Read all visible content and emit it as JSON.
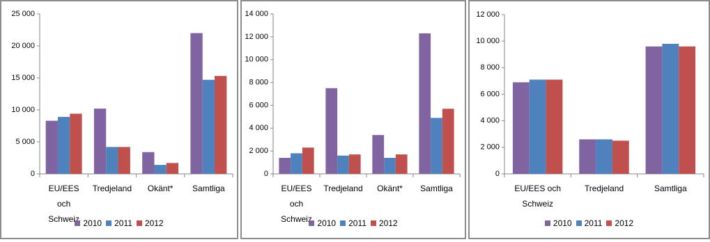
{
  "chart_data": [
    {
      "type": "bar",
      "categories": [
        "EU/EES och Schweiz",
        "Tredjeland",
        "Okänt*",
        "Samtliga"
      ],
      "series": [
        {
          "name": "2010",
          "color": "#8064a2",
          "values": [
            8300,
            10200,
            3400,
            22000
          ]
        },
        {
          "name": "2011",
          "color": "#4f81bd",
          "values": [
            8900,
            4200,
            1400,
            14700
          ]
        },
        {
          "name": "2012",
          "color": "#c0504d",
          "values": [
            9400,
            4200,
            1700,
            15300
          ]
        }
      ],
      "ylim": [
        0,
        25000
      ],
      "yticks": [
        0,
        {
          "value": 5000,
          "label": "5 000"
        },
        {
          "value": 10000,
          "label": "10 000"
        },
        {
          "value": 15000,
          "label": "15 000"
        },
        {
          "value": 20000,
          "label": "20 000"
        },
        {
          "value": 25000,
          "label": "25 000"
        }
      ],
      "grid": false,
      "legend": "bottom"
    },
    {
      "type": "bar",
      "categories": [
        "EU/EES och Schweiz",
        "Tredjeland",
        "Okänt*",
        "Samtliga"
      ],
      "series": [
        {
          "name": "2010",
          "color": "#8064a2",
          "values": [
            1400,
            7500,
            3400,
            12300
          ]
        },
        {
          "name": "2011",
          "color": "#4f81bd",
          "values": [
            1800,
            1600,
            1400,
            4900
          ]
        },
        {
          "name": "2012",
          "color": "#c0504d",
          "values": [
            2300,
            1700,
            1700,
            5700
          ]
        }
      ],
      "ylim": [
        0,
        14000
      ],
      "yticks": [
        0,
        {
          "value": 2000,
          "label": "2 000"
        },
        {
          "value": 4000,
          "label": "4 000"
        },
        {
          "value": 6000,
          "label": "6 000"
        },
        {
          "value": 8000,
          "label": "8 000"
        },
        {
          "value": 10000,
          "label": "10 000"
        },
        {
          "value": 12000,
          "label": "12 000"
        },
        {
          "value": 14000,
          "label": "14 000"
        }
      ],
      "grid": false,
      "legend": "bottom"
    },
    {
      "type": "bar",
      "categories": [
        "EU/EES och Schweiz",
        "Tredjeland",
        "Samtliga"
      ],
      "series": [
        {
          "name": "2010",
          "color": "#8064a2",
          "values": [
            6900,
            2600,
            9600
          ]
        },
        {
          "name": "2011",
          "color": "#4f81bd",
          "values": [
            7100,
            2600,
            9800
          ]
        },
        {
          "name": "2012",
          "color": "#c0504d",
          "values": [
            7100,
            2500,
            9600
          ]
        }
      ],
      "ylim": [
        0,
        12000
      ],
      "yticks": [
        0,
        {
          "value": 2000,
          "label": "2 000"
        },
        {
          "value": 4000,
          "label": "4 000"
        },
        {
          "value": 6000,
          "label": "6 000"
        },
        {
          "value": 8000,
          "label": "8 000"
        },
        {
          "value": 10000,
          "label": "10 000"
        },
        {
          "value": 12000,
          "label": "12 000"
        }
      ],
      "grid": false,
      "legend": "bottom"
    }
  ]
}
